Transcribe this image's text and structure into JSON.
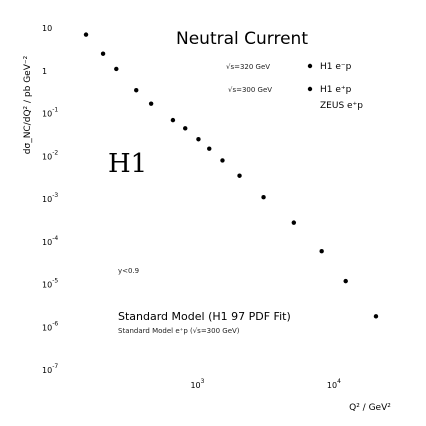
{
  "chart_data": {
    "type": "scatter",
    "title": "Neutral Current",
    "xlabel": "Q² / GeV²",
    "ylabel": "dσ_NC/dQ² / pb GeV⁻²",
    "x_scale": "log",
    "y_scale": "log",
    "xlim": [
      100,
      30000
    ],
    "ylim": [
      1e-07,
      10
    ],
    "x_ticks": [
      {
        "value": 1000,
        "base": "10",
        "exp": "3"
      },
      {
        "value": 10000,
        "base": "10",
        "exp": "4"
      }
    ],
    "y_ticks": [
      {
        "value": 10,
        "base": "10",
        "exp": ""
      },
      {
        "value": 1,
        "base": "1",
        "exp": ""
      },
      {
        "value": 0.1,
        "base": "10",
        "exp": "-1"
      },
      {
        "value": 0.01,
        "base": "10",
        "exp": "-2"
      },
      {
        "value": 0.001,
        "base": "10",
        "exp": "-3"
      },
      {
        "value": 0.0001,
        "base": "10",
        "exp": "-4"
      },
      {
        "value": 1e-05,
        "base": "10",
        "exp": "-5"
      },
      {
        "value": 1e-06,
        "base": "10",
        "exp": "-6"
      },
      {
        "value": 1e-07,
        "base": "10",
        "exp": "-7"
      }
    ],
    "series": [
      {
        "name": "H1 e⁻p",
        "marker": "filled-circle",
        "x": [],
        "y": []
      },
      {
        "name": "H1 e⁺p",
        "marker": "filled-circle",
        "x": [
          150,
          200,
          250,
          350,
          450,
          650,
          800,
          1000,
          1200,
          1500,
          2000,
          3000,
          5000,
          8000,
          12000,
          20000
        ],
        "y": [
          7,
          2.5,
          1.1,
          0.35,
          0.17,
          0.07,
          0.045,
          0.025,
          0.015,
          0.008,
          0.0035,
          0.0011,
          0.00028,
          6e-05,
          1.2e-05,
          1.8e-06
        ]
      },
      {
        "name": "ZEUS e⁺p",
        "marker": "open",
        "x": [],
        "y": []
      }
    ],
    "annotations": {
      "h1": "H1",
      "y_cut": "y<0.9",
      "s320": "√s=320 GeV",
      "s300": "√s=300 GeV",
      "sm_fit": "Standard Model (H1 97 PDF Fit)",
      "sm_300": "Standard Model e⁺p (√s=300 GeV)"
    },
    "legend": [
      "H1 e⁻p",
      "H1 e⁺p",
      "ZEUS e⁺p"
    ],
    "legend_position": "top-right",
    "grid": false
  }
}
